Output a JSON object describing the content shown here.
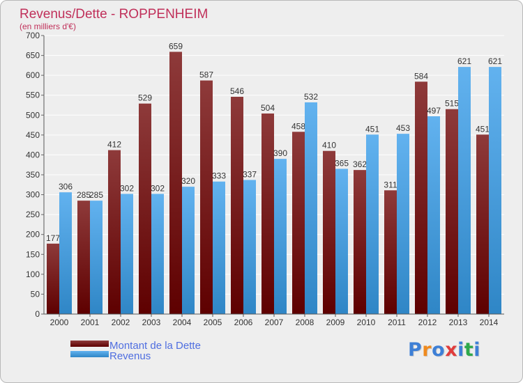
{
  "chart_data": {
    "type": "bar",
    "title": "Revenus/Dette - ROPPENHEIM",
    "subtitle": "(en milliers d'€)",
    "categories": [
      "2000",
      "2001",
      "2002",
      "2003",
      "2004",
      "2005",
      "2006",
      "2007",
      "2008",
      "2009",
      "2010",
      "2011",
      "2012",
      "2013",
      "2014"
    ],
    "series": [
      {
        "name": "Montant de la Dette",
        "values": [
          177,
          285,
          412,
          529,
          659,
          587,
          546,
          504,
          458,
          410,
          362,
          311,
          584,
          515,
          451
        ]
      },
      {
        "name": "Revenus",
        "values": [
          306,
          285,
          302,
          302,
          320,
          333,
          337,
          390,
          532,
          365,
          451,
          453,
          497,
          621,
          621
        ]
      }
    ],
    "ylim": [
      0,
      700
    ],
    "yticks": [
      0,
      50,
      100,
      150,
      200,
      250,
      300,
      350,
      400,
      450,
      500,
      550,
      600,
      650,
      700
    ],
    "grid": true,
    "legend": "bottom-left",
    "colors": {
      "dette_dark": "#5e0000",
      "dette_light": "#8e3a3a",
      "revenus_dark": "#2f86c6",
      "revenus_light": "#62b2ef",
      "title": "#c0305a",
      "legend_text": "#4f6ee0"
    }
  },
  "logo": {
    "text": "Proxiti",
    "letter_colors": [
      "#3d7fd6",
      "#ef8a1e",
      "#3d7fd6",
      "#e03c3c",
      "#3d7fd6",
      "#2ea84a",
      "#3d7fd6"
    ]
  }
}
